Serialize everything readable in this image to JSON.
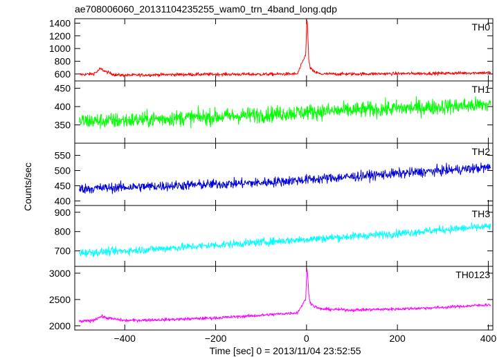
{
  "chart_data": {
    "type": "line",
    "title": "ae708006060_20131104235255_wam0_trn_4band_long.qdp",
    "xlabel": "Time [sec] 0 = 2013/11/04 23:52:55",
    "ylabel": "Counts/sec",
    "xlim": [
      -510,
      410
    ],
    "x_ticks": [
      -400,
      -200,
      0,
      200,
      400
    ],
    "panels": [
      {
        "name": "TH0",
        "color": "#ff0000",
        "ylim": [
          490,
          1470
        ],
        "y_ticks": [
          600,
          800,
          1000,
          1200,
          1400
        ],
        "series": [
          {
            "x": [
              -500,
              -470,
              -460,
              -455,
              -450,
              -440,
              -420,
              -400,
              -300,
              -200,
              -100,
              -20,
              -2,
              1,
              3,
              5,
              8,
              15,
              30,
              100,
              200,
              300,
              400
            ],
            "y": [
              590,
              600,
              640,
              680,
              670,
              630,
              585,
              580,
              590,
              595,
              595,
              600,
              900,
              1480,
              1200,
              800,
              700,
              640,
              600,
              600,
              605,
              610,
              620
            ]
          }
        ]
      },
      {
        "name": "TH1",
        "color": "#00ff00",
        "ylim": [
          300,
          470
        ],
        "y_ticks": [
          350,
          400,
          450
        ],
        "series": [
          {
            "x": [
              -500,
              -400,
              -300,
              -200,
              -100,
              0,
              100,
              200,
              300,
              400
            ],
            "y": [
              360,
              362,
              368,
              372,
              378,
              385,
              390,
              395,
              400,
              405
            ]
          }
        ]
      },
      {
        "name": "TH2",
        "color": "#0000dd",
        "ylim": [
          385,
          590
        ],
        "y_ticks": [
          400,
          450,
          500,
          550
        ],
        "series": [
          {
            "x": [
              -500,
              -400,
              -300,
              -200,
              -100,
              0,
              100,
              200,
              300,
              400
            ],
            "y": [
              440,
              445,
              450,
              455,
              460,
              470,
              480,
              490,
              500,
              510
            ]
          }
        ]
      },
      {
        "name": "TH3",
        "color": "#00ffff",
        "ylim": [
          620,
          935
        ],
        "y_ticks": [
          700,
          800,
          900
        ],
        "series": [
          {
            "x": [
              -500,
              -400,
              -300,
              -200,
              -100,
              0,
              100,
              200,
              300,
              400
            ],
            "y": [
              690,
              700,
              715,
              730,
              745,
              760,
              775,
              790,
              810,
              825
            ]
          }
        ]
      },
      {
        "name": "TH0123",
        "color": "#ff00ff",
        "ylim": [
          1920,
          3130
        ],
        "y_ticks": [
          2000,
          2500,
          3000
        ],
        "series": [
          {
            "x": [
              -500,
              -470,
              -460,
              -450,
              -440,
              -400,
              -300,
              -200,
              -100,
              -20,
              -2,
              1,
              3,
              5,
              8,
              15,
              30,
              100,
              200,
              300,
              400
            ],
            "y": [
              2080,
              2100,
              2150,
              2180,
              2150,
              2100,
              2120,
              2150,
              2200,
              2250,
              2500,
              3100,
              2900,
              2600,
              2450,
              2380,
              2320,
              2300,
              2320,
              2350,
              2400
            ]
          }
        ]
      }
    ]
  }
}
